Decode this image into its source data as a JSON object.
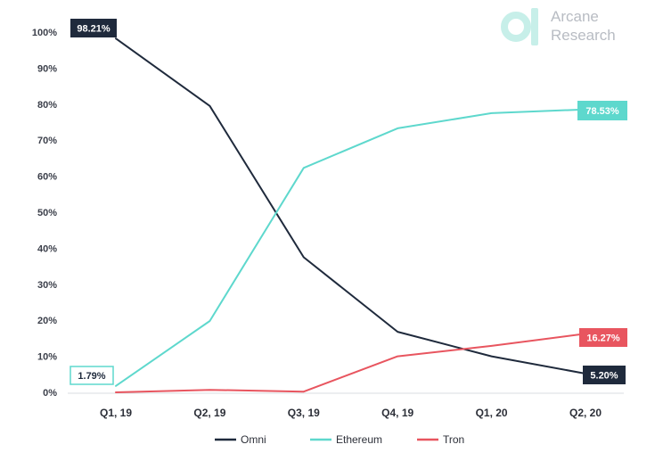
{
  "logo": {
    "line1": "Arcane",
    "line2": "Research",
    "mark_color": "#c7efe9"
  },
  "chart_data": {
    "type": "line",
    "title": "",
    "xlabel": "",
    "ylabel": "",
    "categories": [
      "Q1, 19",
      "Q2, 19",
      "Q3, 19",
      "Q4, 19",
      "Q1, 20",
      "Q2, 20"
    ],
    "ylim": [
      0,
      100
    ],
    "yticks": [
      0,
      10,
      20,
      30,
      40,
      50,
      60,
      70,
      80,
      90,
      100
    ],
    "ytick_labels": [
      "0%",
      "10%",
      "20%",
      "30%",
      "40%",
      "50%",
      "60%",
      "70%",
      "80%",
      "90%",
      "100%"
    ],
    "grid": false,
    "legend_position": "bottom",
    "series": [
      {
        "name": "Omni",
        "color": "#1f2a3c",
        "values": [
          98.21,
          79.5,
          37.5,
          16.8,
          10.0,
          5.2
        ]
      },
      {
        "name": "Ethereum",
        "color": "#5ed8cd",
        "values": [
          1.79,
          19.8,
          62.3,
          73.3,
          77.5,
          78.53
        ]
      },
      {
        "name": "Tron",
        "color": "#e8555f",
        "values": [
          0.0,
          0.7,
          0.2,
          10.0,
          12.9,
          16.27
        ]
      }
    ],
    "annotations": [
      {
        "text": "98.21%",
        "series": "Omni",
        "point": 0,
        "style": "filled",
        "bg": "#1f2a3c",
        "fg": "#ffffff"
      },
      {
        "text": "1.79%",
        "series": "Ethereum",
        "point": 0,
        "style": "outline",
        "bg": "#ffffff",
        "fg": "#1f2a3c",
        "border": "#5ed8cd"
      },
      {
        "text": "78.53%",
        "series": "Ethereum",
        "point": 5,
        "style": "filled",
        "bg": "#5ed8cd",
        "fg": "#ffffff"
      },
      {
        "text": "16.27%",
        "series": "Tron",
        "point": 5,
        "style": "filled",
        "bg": "#e8555f",
        "fg": "#ffffff"
      },
      {
        "text": "5.20%",
        "series": "Omni",
        "point": 5,
        "style": "filled",
        "bg": "#1f2a3c",
        "fg": "#ffffff"
      }
    ]
  }
}
